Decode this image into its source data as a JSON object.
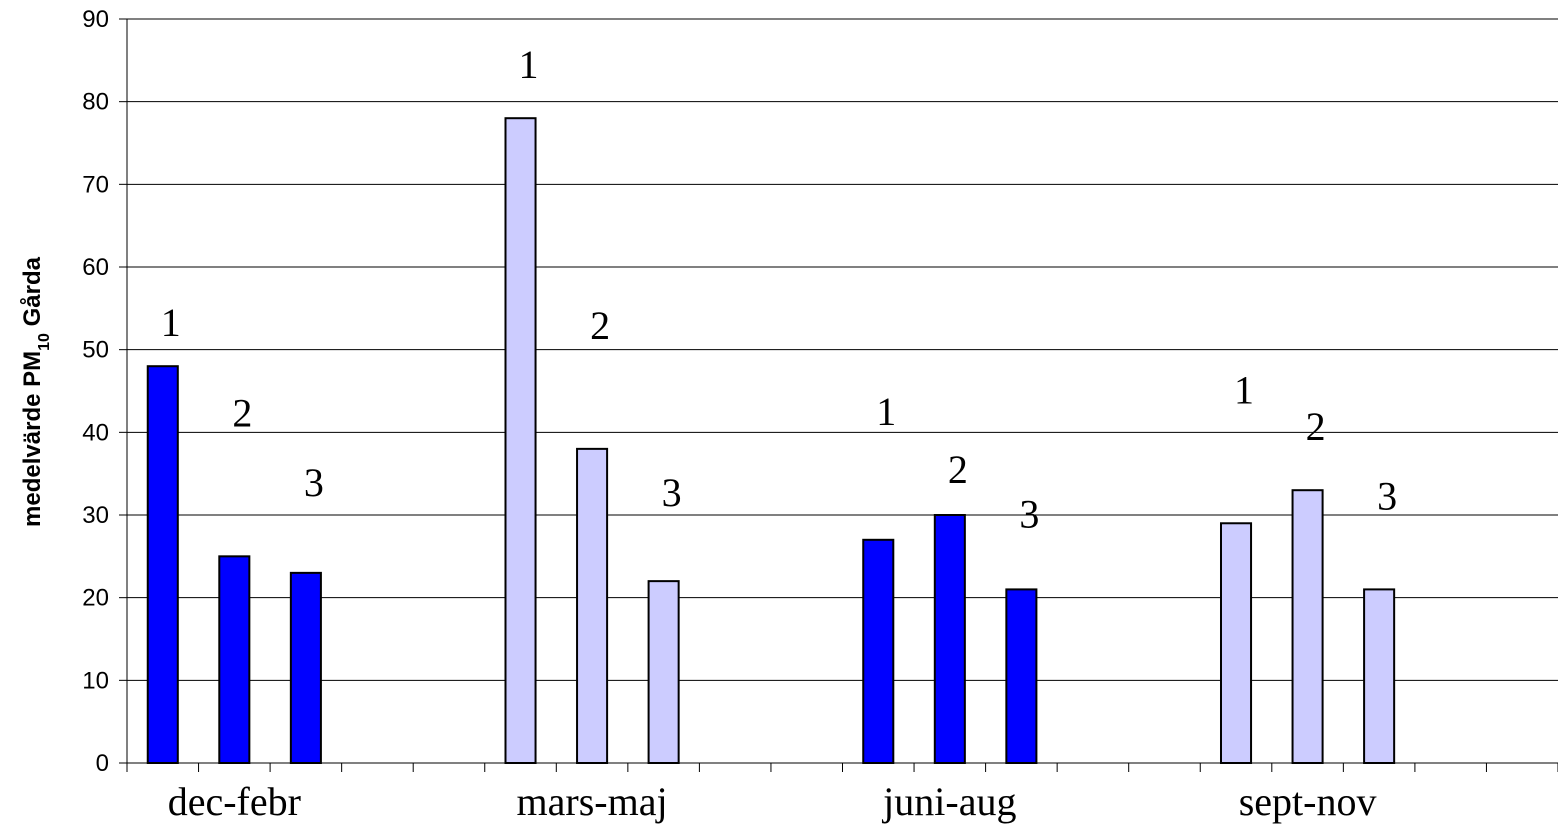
{
  "chart_data": {
    "type": "bar",
    "ylabel": {
      "main": "medelvärde PM",
      "sub": "10",
      "suffix": " Gårda"
    },
    "ylim": [
      0,
      90
    ],
    "yticks": [
      "0",
      "10",
      "20",
      "30",
      "40",
      "50",
      "60",
      "70",
      "80",
      "90"
    ],
    "grid": true,
    "groups": [
      {
        "name": "dec-febr",
        "color": "#0000ff",
        "bars": [
          {
            "label": "1",
            "value": 48
          },
          {
            "label": "2",
            "value": 25
          },
          {
            "label": "3",
            "value": 23
          }
        ]
      },
      {
        "name": "mars-maj",
        "color": "#ccccff",
        "bars": [
          {
            "label": "1",
            "value": 78
          },
          {
            "label": "2",
            "value": 38
          },
          {
            "label": "3",
            "value": 22
          }
        ]
      },
      {
        "name": "juni-aug",
        "color": "#0000ff",
        "bars": [
          {
            "label": "1",
            "value": 27
          },
          {
            "label": "2",
            "value": 30
          },
          {
            "label": "3",
            "value": 21
          }
        ]
      },
      {
        "name": "sept-nov",
        "color": "#ccccff",
        "bars": [
          {
            "label": "1",
            "value": 29
          },
          {
            "label": "2",
            "value": 33
          },
          {
            "label": "3",
            "value": 21
          }
        ]
      }
    ]
  }
}
